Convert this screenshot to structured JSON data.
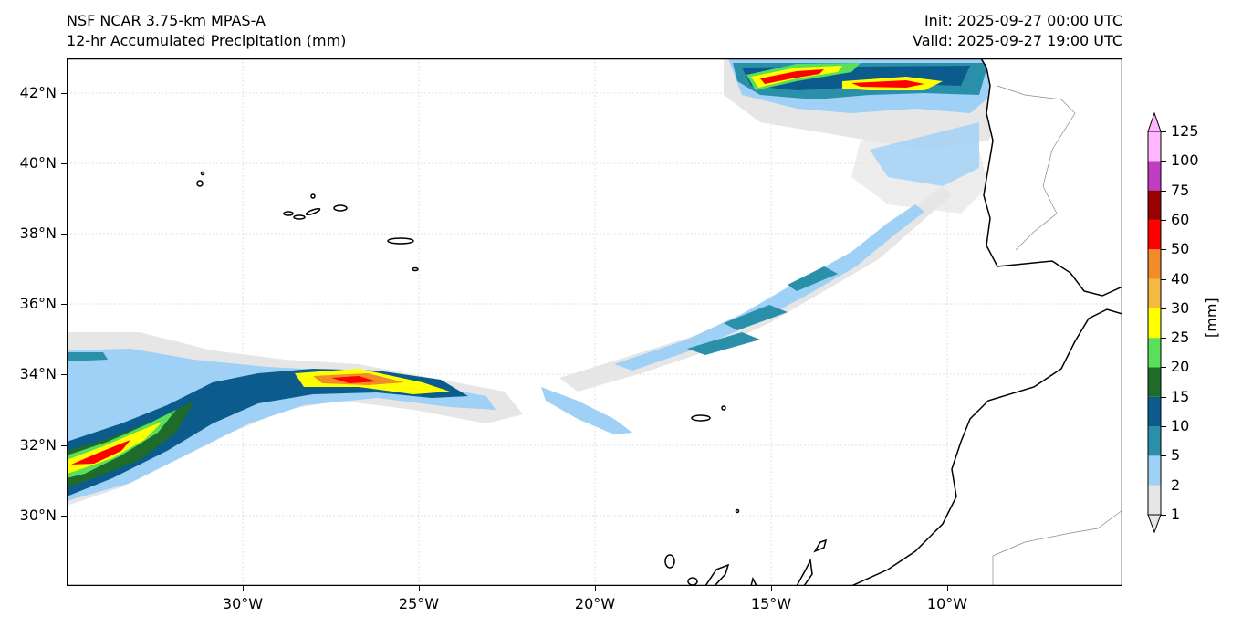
{
  "title": {
    "left_line1": "NSF NCAR 3.75-km MPAS-A",
    "left_line2": "12-hr Accumulated Precipitation (mm)",
    "right_line1": "Init: 2025-09-27 00:00 UTC",
    "right_line2": "Valid: 2025-09-27 19:00 UTC"
  },
  "map": {
    "lat_labels": [
      "42°N",
      "40°N",
      "38°N",
      "36°N",
      "34°N",
      "32°N",
      "30°N"
    ],
    "lon_labels": [
      "30°W",
      "25°W",
      "20°W",
      "15°W",
      "10°W"
    ]
  },
  "colorbar": {
    "units": "[mm]",
    "levels": [
      "1",
      "2",
      "5",
      "10",
      "15",
      "20",
      "25",
      "30",
      "40",
      "50",
      "60",
      "75",
      "100",
      "125"
    ],
    "colors": [
      "#e6e6e6",
      "#9fd0f5",
      "#2a8fa8",
      "#0b5c8c",
      "#1e6b2a",
      "#5adf5a",
      "#ffff00",
      "#f5b942",
      "#f28c28",
      "#ff0000",
      "#990000",
      "#c03cc0",
      "#ffb6ff"
    ]
  }
}
